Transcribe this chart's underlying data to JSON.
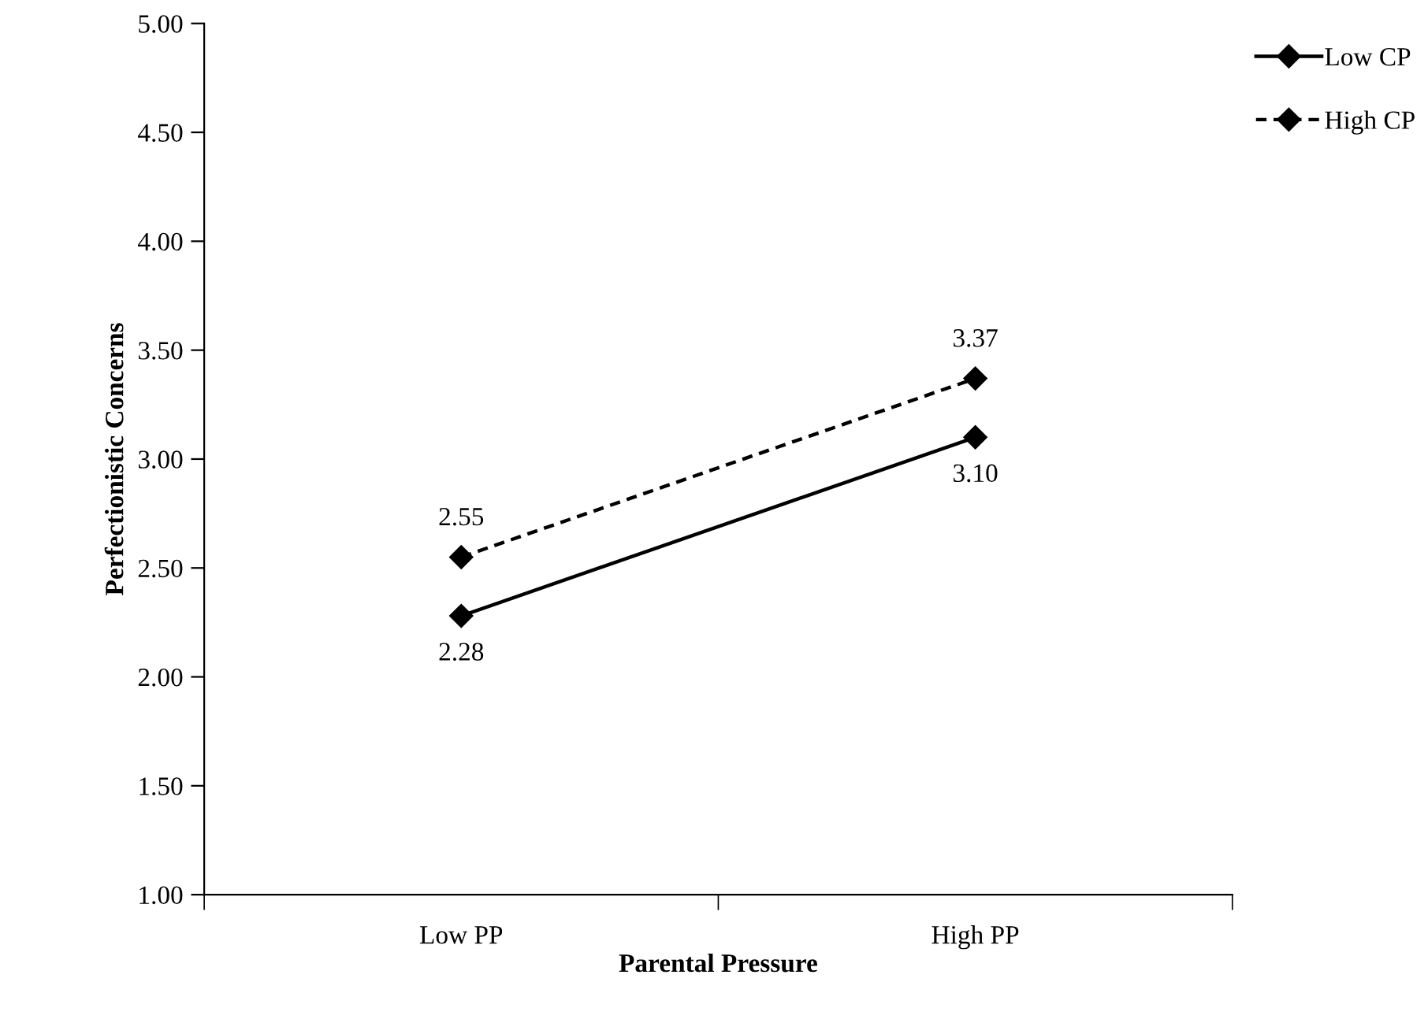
{
  "chart_data": {
    "type": "line",
    "xlabel": "Parental Pressure",
    "ylabel": "Perfectionistic Concerns",
    "categories": [
      "Low PP",
      "High PP"
    ],
    "series": [
      {
        "name": "Low CP",
        "color": "#000000",
        "values": [
          2.28,
          3.1
        ],
        "value_labels": [
          "2.28",
          "3.10"
        ],
        "line_style": "solid"
      },
      {
        "name": "High CP",
        "color": "#000000",
        "values": [
          2.55,
          3.37
        ],
        "value_labels": [
          "2.55",
          "3.37"
        ],
        "line_style": "dashed"
      }
    ],
    "ylim": [
      1,
      5
    ],
    "yticks": [
      {
        "value": 1,
        "label": "1.00"
      },
      {
        "value": 1.5,
        "label": "1.50"
      },
      {
        "value": 2,
        "label": "2.00"
      },
      {
        "value": 2.5,
        "label": "2.50"
      },
      {
        "value": 3,
        "label": "3.00"
      },
      {
        "value": 3.5,
        "label": "3.50"
      },
      {
        "value": 4,
        "label": "4.00"
      },
      {
        "value": 4.5,
        "label": "4.50"
      },
      {
        "value": 5,
        "label": "5.00"
      }
    ],
    "marker": "diamond",
    "grid": false,
    "legend": "top right"
  }
}
